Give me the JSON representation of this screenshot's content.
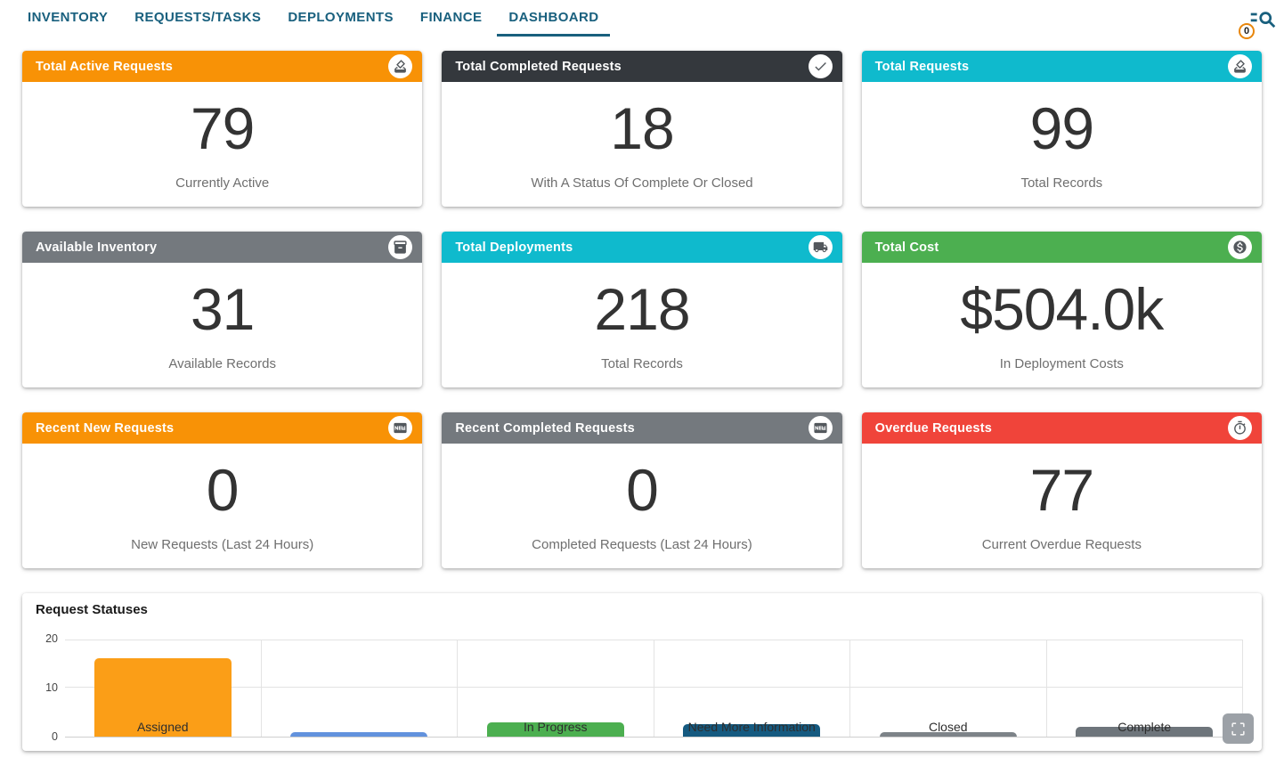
{
  "nav": {
    "tabs": [
      {
        "label": "INVENTORY",
        "active": false
      },
      {
        "label": "REQUESTS/TASKS",
        "active": false
      },
      {
        "label": "DEPLOYMENTS",
        "active": false
      },
      {
        "label": "FINANCE",
        "active": false
      },
      {
        "label": "DASHBOARD",
        "active": true
      }
    ],
    "search": {
      "icon": "search-filter-icon",
      "badge_count": "0"
    },
    "accent_color": "#19607E"
  },
  "cards": [
    {
      "title": "Total Active Requests",
      "icon": "ballot-icon",
      "header_color": "#F89206",
      "value": "79",
      "subtitle": "Currently Active"
    },
    {
      "title": "Total Completed Requests",
      "icon": "check-icon",
      "header_color": "#34383D",
      "value": "18",
      "subtitle": "With A Status Of Complete Or Closed"
    },
    {
      "title": "Total Requests",
      "icon": "ballot-icon",
      "header_color": "#0FBACD",
      "value": "99",
      "subtitle": "Total Records"
    },
    {
      "title": "Available Inventory",
      "icon": "inventory-icon",
      "header_color": "#74797E",
      "value": "31",
      "subtitle": "Available Records"
    },
    {
      "title": "Total Deployments",
      "icon": "truck-icon",
      "header_color": "#0FBACD",
      "value": "218",
      "subtitle": "Total Records"
    },
    {
      "title": "Total Cost",
      "icon": "dollar-icon",
      "header_color": "#4CAF50",
      "value": "$504.0k",
      "subtitle": "In Deployment Costs"
    },
    {
      "title": "Recent New Requests",
      "icon": "new-badge-icon",
      "header_color": "#F89206",
      "value": "0",
      "subtitle": "New Requests (Last 24 Hours)"
    },
    {
      "title": "Recent Completed Requests",
      "icon": "new-badge-icon",
      "header_color": "#74797E",
      "value": "0",
      "subtitle": "Completed Requests (Last 24 Hours)"
    },
    {
      "title": "Overdue Requests",
      "icon": "timer-icon",
      "header_color": "#F0443A",
      "value": "77",
      "subtitle": "Current Overdue Requests"
    }
  ],
  "chart_data": {
    "type": "bar",
    "title": "Request Statuses",
    "categories": [
      "Assigned",
      "",
      "In Progress",
      "Need More Information",
      "Closed",
      "Complete"
    ],
    "values": [
      16,
      1,
      3,
      2.5,
      1,
      2
    ],
    "bar_colors": [
      "#FB9E17",
      "#6292DD",
      "#4CAF50",
      "#155A80",
      "#7D8388",
      "#6E757B"
    ],
    "label_color": "#2d2d2d",
    "xlabel": "",
    "ylabel": "",
    "ylim": [
      0,
      20
    ],
    "yticks": [
      0,
      10,
      20
    ],
    "grid": true,
    "legend": "none"
  },
  "chart_ui": {
    "fullscreen_icon": "fullscreen-icon"
  }
}
